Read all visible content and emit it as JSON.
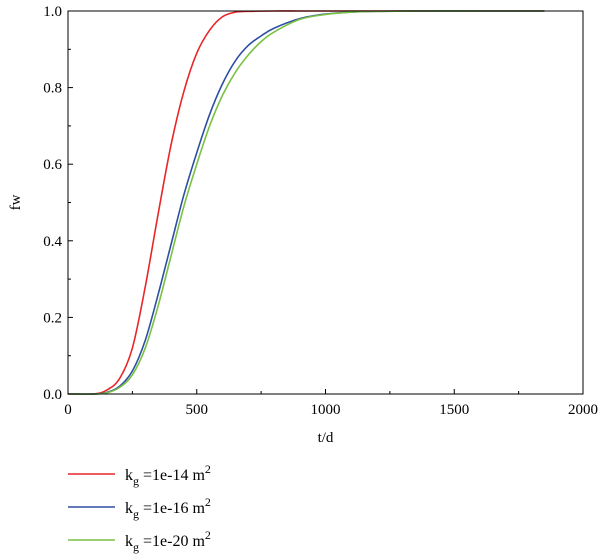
{
  "chart_data": {
    "type": "line",
    "xlabel": "t/d",
    "ylabel": "fw",
    "xlim": [
      0,
      2000
    ],
    "ylim": [
      0,
      1.0
    ],
    "xticks": [
      0,
      500,
      1000,
      1500,
      2000
    ],
    "yticks": [
      0.0,
      0.2,
      0.4,
      0.6,
      0.8,
      1.0
    ],
    "xtick_labels": [
      "0",
      "500",
      "1000",
      "1500",
      "2000"
    ],
    "ytick_labels": [
      "0.0",
      "0.2",
      "0.4",
      "0.6",
      "0.8",
      "1.0"
    ],
    "grid": false,
    "legend_position": "bottom",
    "series": [
      {
        "name_base": "k",
        "name_sub": "g",
        "name_mid": " =1e-14 m",
        "name_sup": "2",
        "color": "#e8262a",
        "x": [
          0,
          100,
          150,
          200,
          250,
          300,
          350,
          400,
          450,
          500,
          550,
          600,
          650,
          700,
          800,
          900,
          1000,
          1200,
          1400,
          1600,
          1850
        ],
        "y": [
          0.0,
          0.0,
          0.01,
          0.04,
          0.12,
          0.28,
          0.47,
          0.65,
          0.79,
          0.89,
          0.95,
          0.985,
          0.997,
          0.999,
          1.0,
          1.0,
          1.0,
          1.0,
          1.0,
          1.0,
          1.0
        ]
      },
      {
        "name_base": "k",
        "name_sub": "g",
        "name_mid": " =1e-16 m",
        "name_sup": "2",
        "color": "#2e4fa3",
        "x": [
          0,
          100,
          150,
          200,
          250,
          300,
          350,
          400,
          450,
          500,
          550,
          600,
          650,
          700,
          750,
          800,
          900,
          1000,
          1100,
          1200,
          1400,
          1600,
          1850
        ],
        "y": [
          0.0,
          0.0,
          0.004,
          0.02,
          0.06,
          0.14,
          0.26,
          0.39,
          0.52,
          0.63,
          0.73,
          0.81,
          0.87,
          0.91,
          0.935,
          0.955,
          0.98,
          0.992,
          0.997,
          0.999,
          1.0,
          1.0,
          1.0
        ]
      },
      {
        "name_base": "k",
        "name_sub": "g",
        "name_mid": " =1e-20 m",
        "name_sup": "2",
        "color": "#79c143",
        "x": [
          0,
          100,
          150,
          200,
          250,
          300,
          350,
          400,
          450,
          500,
          550,
          600,
          650,
          700,
          750,
          800,
          900,
          1000,
          1100,
          1200,
          1400,
          1600,
          1850
        ],
        "y": [
          0.0,
          0.0,
          0.003,
          0.017,
          0.05,
          0.12,
          0.23,
          0.36,
          0.49,
          0.6,
          0.7,
          0.78,
          0.84,
          0.885,
          0.92,
          0.945,
          0.978,
          0.991,
          0.997,
          0.999,
          1.0,
          1.0,
          1.0
        ]
      }
    ]
  }
}
